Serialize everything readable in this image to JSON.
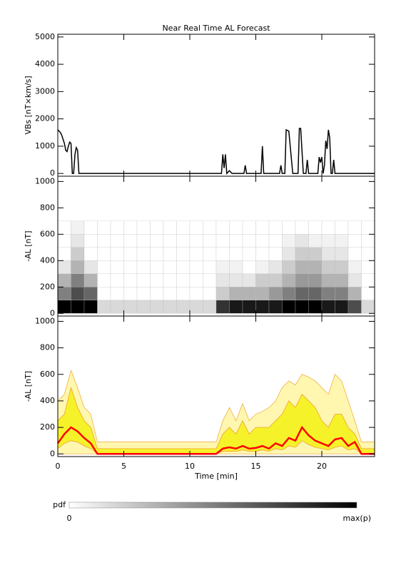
{
  "chart_data": [
    {
      "type": "line",
      "title": "Near Real Time AL Forecast",
      "ylabel": "VBs [nT×km/s]",
      "color": "#000000",
      "x": [
        0,
        0.1,
        0.2,
        0.3,
        0.4,
        0.5,
        0.6,
        0.7,
        0.8,
        0.9,
        1.0,
        1.1,
        1.2,
        1.3,
        1.4,
        1.5,
        1.6,
        12.4,
        12.5,
        12.6,
        12.7,
        12.8,
        13.0,
        13.2,
        14.1,
        14.2,
        14.3,
        15.4,
        15.5,
        15.6,
        16.8,
        16.9,
        17.0,
        17.2,
        17.3,
        17.5,
        17.8,
        18.2,
        18.3,
        18.4,
        18.6,
        18.8,
        18.9,
        19.0,
        19.7,
        19.8,
        19.9,
        20.0,
        20.1,
        20.2,
        20.3,
        20.4,
        20.5,
        20.6,
        20.7,
        20.8,
        20.9,
        21.0,
        21.1,
        24
      ],
      "values": [
        1600,
        1550,
        1500,
        1400,
        1250,
        1100,
        850,
        800,
        1000,
        1150,
        1100,
        0,
        0,
        700,
        950,
        850,
        0,
        0,
        700,
        200,
        700,
        0,
        100,
        0,
        0,
        300,
        0,
        0,
        1000,
        0,
        0,
        300,
        0,
        0,
        1600,
        1550,
        0,
        0,
        1650,
        1650,
        0,
        0,
        500,
        0,
        0,
        600,
        400,
        600,
        0,
        300,
        1200,
        900,
        1600,
        1300,
        0,
        0,
        500,
        0,
        0,
        0
      ],
      "xlim": [
        0,
        24
      ],
      "xticks": [
        0,
        5,
        10,
        15,
        20
      ],
      "ylim": [
        -100,
        5100
      ],
      "yticks": [
        0,
        1000,
        2000,
        3000,
        4000,
        5000
      ]
    },
    {
      "type": "heatmap",
      "ylabel": "-AL [nT]",
      "x_bins": [
        0,
        1,
        2,
        3,
        4,
        5,
        6,
        7,
        8,
        9,
        10,
        11,
        12,
        13,
        14,
        15,
        16,
        17,
        18,
        19,
        20,
        21,
        22,
        23,
        24
      ],
      "y_bins": [
        0,
        100,
        200,
        300,
        400,
        500,
        600,
        700
      ],
      "pdf": [
        [
          1,
          0.5,
          0.3,
          0.1,
          0,
          0,
          0
        ],
        [
          1,
          0.7,
          0.5,
          0.3,
          0.2,
          0.1,
          0.05
        ],
        [
          1,
          0.6,
          0.3,
          0.1,
          0,
          0,
          0
        ],
        [
          0.15,
          0,
          0,
          0,
          0,
          0,
          0
        ],
        [
          0.15,
          0,
          0,
          0,
          0,
          0,
          0
        ],
        [
          0.15,
          0,
          0,
          0,
          0,
          0,
          0
        ],
        [
          0.15,
          0,
          0,
          0,
          0,
          0,
          0
        ],
        [
          0.15,
          0,
          0,
          0,
          0,
          0,
          0
        ],
        [
          0.15,
          0,
          0,
          0,
          0,
          0,
          0
        ],
        [
          0.15,
          0,
          0,
          0,
          0,
          0,
          0
        ],
        [
          0.15,
          0,
          0,
          0,
          0,
          0,
          0
        ],
        [
          0.15,
          0,
          0,
          0,
          0,
          0,
          0
        ],
        [
          0.8,
          0.2,
          0.1,
          0.05,
          0,
          0,
          0
        ],
        [
          0.9,
          0.3,
          0.1,
          0.05,
          0,
          0,
          0
        ],
        [
          0.9,
          0.3,
          0.1,
          0,
          0,
          0,
          0
        ],
        [
          0.9,
          0.3,
          0.2,
          0.05,
          0,
          0,
          0
        ],
        [
          0.9,
          0.4,
          0.2,
          0.1,
          0,
          0,
          0
        ],
        [
          1,
          0.5,
          0.3,
          0.2,
          0.1,
          0.05,
          0
        ],
        [
          1,
          0.6,
          0.4,
          0.3,
          0.2,
          0.1,
          0
        ],
        [
          1,
          0.6,
          0.4,
          0.3,
          0.2,
          0.05,
          0
        ],
        [
          0.9,
          0.5,
          0.3,
          0.2,
          0.1,
          0.05,
          0
        ],
        [
          0.9,
          0.5,
          0.3,
          0.2,
          0.1,
          0.05,
          0
        ],
        [
          0.7,
          0.3,
          0.1,
          0.05,
          0,
          0,
          0
        ],
        [
          0.15,
          0,
          0,
          0,
          0,
          0,
          0
        ]
      ],
      "colorbar": {
        "label": "pdf",
        "min_label": "0",
        "max_label": "max(p)"
      },
      "xlim": [
        0,
        24
      ],
      "xticks": [
        0,
        5,
        10,
        15,
        20
      ],
      "ylim": [
        -20,
        1040
      ],
      "yticks": [
        0,
        200,
        400,
        600,
        800,
        1000
      ]
    },
    {
      "type": "band",
      "ylabel": "-AL [nT]",
      "xlabel": "Time [min]",
      "x": [
        0,
        0.5,
        1,
        1.5,
        2,
        2.5,
        3,
        3.5,
        4,
        4.5,
        5,
        5.5,
        6,
        6.5,
        7,
        7.5,
        8,
        8.5,
        9,
        9.5,
        10,
        10.5,
        11,
        11.5,
        12,
        12.5,
        13,
        13.5,
        14,
        14.5,
        15,
        15.5,
        16,
        16.5,
        17,
        17.5,
        18,
        18.5,
        19,
        19.5,
        20,
        20.5,
        21,
        21.5,
        22,
        22.5,
        23,
        23.5,
        24
      ],
      "bands": [
        {
          "color": "#fff7b0",
          "edge": "#f0b040",
          "lower": [
            0,
            0,
            0,
            0,
            0,
            0,
            0,
            0,
            0,
            0,
            0,
            0,
            0,
            0,
            0,
            0,
            0,
            0,
            0,
            0,
            0,
            0,
            0,
            0,
            0,
            0,
            0,
            0,
            0,
            0,
            0,
            0,
            0,
            0,
            0,
            0,
            0,
            0,
            0,
            0,
            0,
            0,
            0,
            0,
            0,
            0,
            0,
            0,
            0
          ],
          "upper": [
            400,
            450,
            630,
            500,
            350,
            300,
            90,
            90,
            90,
            90,
            90,
            90,
            90,
            90,
            90,
            90,
            90,
            90,
            90,
            90,
            90,
            90,
            90,
            90,
            90,
            250,
            350,
            250,
            380,
            250,
            300,
            320,
            350,
            400,
            500,
            550,
            520,
            600,
            580,
            550,
            500,
            450,
            600,
            550,
            400,
            250,
            90,
            90,
            90
          ]
        },
        {
          "color": "#f5f22a",
          "edge": "#f0a030",
          "lower": [
            40,
            80,
            100,
            90,
            60,
            40,
            0,
            0,
            0,
            0,
            0,
            0,
            0,
            0,
            0,
            0,
            0,
            0,
            0,
            0,
            0,
            0,
            0,
            0,
            0,
            20,
            20,
            20,
            30,
            20,
            20,
            30,
            20,
            40,
            30,
            60,
            50,
            100,
            70,
            50,
            40,
            30,
            50,
            60,
            30,
            40,
            0,
            0,
            0
          ],
          "upper": [
            250,
            300,
            500,
            350,
            250,
            200,
            40,
            40,
            40,
            40,
            40,
            40,
            40,
            40,
            40,
            40,
            40,
            40,
            40,
            40,
            40,
            40,
            40,
            40,
            40,
            150,
            200,
            150,
            250,
            150,
            200,
            200,
            200,
            250,
            300,
            400,
            350,
            450,
            400,
            350,
            250,
            200,
            300,
            300,
            200,
            150,
            40,
            40,
            40
          ]
        }
      ],
      "median": {
        "color": "#ff0000",
        "values": [
          80,
          150,
          200,
          170,
          120,
          80,
          0,
          0,
          0,
          0,
          0,
          0,
          0,
          0,
          0,
          0,
          0,
          0,
          0,
          0,
          0,
          0,
          0,
          0,
          0,
          40,
          50,
          40,
          60,
          40,
          45,
          60,
          40,
          80,
          60,
          120,
          100,
          200,
          140,
          100,
          80,
          60,
          110,
          120,
          60,
          90,
          0,
          0,
          0
        ]
      },
      "xlim": [
        0,
        24
      ],
      "xticks": [
        0,
        5,
        10,
        15,
        20
      ],
      "ylim": [
        -20,
        1040
      ],
      "yticks": [
        0,
        200,
        400,
        600,
        800,
        1000
      ]
    }
  ]
}
